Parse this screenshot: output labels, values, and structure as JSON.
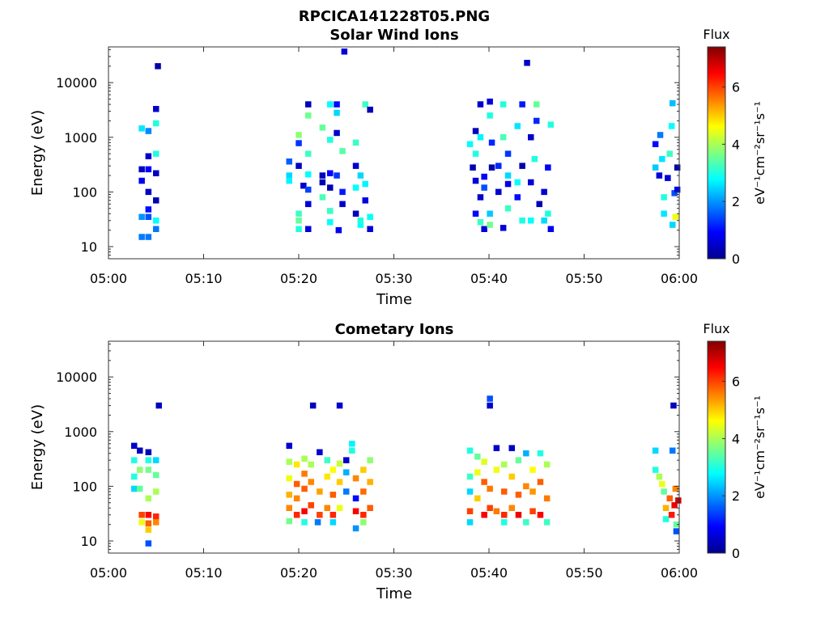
{
  "figure": {
    "title": "RPCICA141228T05.PNG"
  },
  "colorbar": {
    "label": "Flux",
    "unit_label": "eV⁻¹cm⁻²sr⁻¹s⁻¹",
    "range": [
      0,
      7.4
    ],
    "ticks": [
      "0",
      "2",
      "4",
      "6"
    ],
    "tick_values": [
      0,
      2,
      4,
      6
    ],
    "colormap": "jet"
  },
  "chart_data": [
    {
      "type": "heatmap",
      "title": "Solar Wind Ions",
      "xlabel": "Time",
      "ylabel": "Energy (eV)",
      "x_range_minutes": [
        0,
        60
      ],
      "x_ticks": [
        "05:00",
        "05:10",
        "05:20",
        "05:30",
        "05:40",
        "05:50",
        "06:00"
      ],
      "y_scale": "log",
      "y_range": [
        6,
        45000
      ],
      "y_ticks": [
        "10",
        "100",
        "1000",
        "10000"
      ],
      "cells": [
        [
          3.5,
          15,
          1.8
        ],
        [
          3.5,
          35,
          2.0
        ],
        [
          3.5,
          260,
          0.4
        ],
        [
          3.5,
          160,
          0.8
        ],
        [
          3.5,
          1450,
          2.6
        ],
        [
          4.2,
          1300,
          1.9
        ],
        [
          4.2,
          100,
          0.4
        ],
        [
          4.2,
          48,
          1.0
        ],
        [
          4.2,
          35,
          1.5
        ],
        [
          4.2,
          450,
          0.5
        ],
        [
          4.2,
          260,
          0.9
        ],
        [
          4.2,
          15,
          1.8
        ],
        [
          5.0,
          21,
          1.8
        ],
        [
          5.0,
          30,
          2.8
        ],
        [
          5.0,
          70,
          0.3
        ],
        [
          5.0,
          220,
          0.4
        ],
        [
          5.0,
          500,
          3.0
        ],
        [
          5.0,
          1800,
          3.0
        ],
        [
          5.0,
          3300,
          0.5
        ],
        [
          5.2,
          20000,
          0.2
        ],
        [
          19.0,
          200,
          2.5
        ],
        [
          19.0,
          360,
          1.6
        ],
        [
          19.0,
          160,
          2.7
        ],
        [
          20.0,
          21,
          3.0
        ],
        [
          20.0,
          30,
          3.5
        ],
        [
          20.0,
          40,
          3.2
        ],
        [
          20.0,
          300,
          0.4
        ],
        [
          20.0,
          780,
          1.3
        ],
        [
          20.0,
          1100,
          3.8
        ],
        [
          20.5,
          130,
          0.5
        ],
        [
          21.0,
          60,
          0.6
        ],
        [
          21.0,
          110,
          1.4
        ],
        [
          21.0,
          210,
          2.8
        ],
        [
          21.0,
          500,
          3.2
        ],
        [
          21.0,
          21,
          0.6
        ],
        [
          21.0,
          2500,
          3.6
        ],
        [
          21.0,
          4000,
          0.4
        ],
        [
          22.5,
          150,
          0.3
        ],
        [
          22.5,
          80,
          3.3
        ],
        [
          22.5,
          200,
          0.4
        ],
        [
          22.5,
          1500,
          3.5
        ],
        [
          23.3,
          28,
          2.8
        ],
        [
          23.3,
          45,
          3.2
        ],
        [
          23.3,
          120,
          0.3
        ],
        [
          23.3,
          220,
          0.9
        ],
        [
          23.3,
          900,
          3.0
        ],
        [
          23.3,
          4000,
          2.8
        ],
        [
          24.0,
          200,
          1.3
        ],
        [
          24.0,
          1200,
          0.5
        ],
        [
          24.0,
          4000,
          1.0
        ],
        [
          24.0,
          2800,
          2.5
        ],
        [
          24.2,
          20,
          0.8
        ],
        [
          24.8,
          37000,
          0.6
        ],
        [
          24.6,
          100,
          1.1
        ],
        [
          24.6,
          60,
          0.5
        ],
        [
          24.6,
          560,
          3.4
        ],
        [
          26.0,
          40,
          0.4
        ],
        [
          26.0,
          300,
          0.5
        ],
        [
          26.0,
          800,
          3.2
        ],
        [
          26.0,
          120,
          2.8
        ],
        [
          26.5,
          25,
          2.8
        ],
        [
          26.5,
          30,
          3.0
        ],
        [
          26.5,
          200,
          2.5
        ],
        [
          27.0,
          70,
          0.7
        ],
        [
          27.0,
          140,
          2.7
        ],
        [
          27.0,
          4000,
          3.2
        ],
        [
          27.5,
          21,
          0.6
        ],
        [
          27.5,
          35,
          2.8
        ],
        [
          27.5,
          3200,
          0.3
        ],
        [
          38.0,
          750,
          2.8
        ],
        [
          38.3,
          280,
          0.3
        ],
        [
          38.6,
          40,
          1.0
        ],
        [
          38.6,
          160,
          0.6
        ],
        [
          38.6,
          500,
          3.0
        ],
        [
          38.6,
          1300,
          0.4
        ],
        [
          39.1,
          28,
          3.2
        ],
        [
          39.1,
          80,
          0.5
        ],
        [
          39.1,
          1000,
          2.7
        ],
        [
          39.1,
          4000,
          0.5
        ],
        [
          39.5,
          21,
          0.6
        ],
        [
          39.5,
          190,
          0.9
        ],
        [
          39.5,
          120,
          1.5
        ],
        [
          40.1,
          4500,
          0.6
        ],
        [
          40.1,
          2500,
          3.0
        ],
        [
          40.1,
          40,
          2.4
        ],
        [
          40.1,
          25,
          3.6
        ],
        [
          40.3,
          280,
          0.2
        ],
        [
          40.3,
          800,
          1.2
        ],
        [
          41.0,
          100,
          0.5
        ],
        [
          41.0,
          300,
          1.2
        ],
        [
          41.5,
          4000,
          3.0
        ],
        [
          41.5,
          1000,
          3.3
        ],
        [
          41.5,
          22,
          0.6
        ],
        [
          42.0,
          50,
          3.2
        ],
        [
          42.0,
          140,
          0.7
        ],
        [
          42.0,
          500,
          1.3
        ],
        [
          42.0,
          200,
          2.5
        ],
        [
          43.0,
          1600,
          2.6
        ],
        [
          43.0,
          150,
          2.8
        ],
        [
          43.0,
          80,
          1.0
        ],
        [
          43.5,
          30,
          3.0
        ],
        [
          43.5,
          300,
          0.3
        ],
        [
          43.5,
          4000,
          1.1
        ],
        [
          44.0,
          23000,
          0.5
        ],
        [
          44.4,
          1000,
          0.5
        ],
        [
          44.4,
          30,
          2.8
        ],
        [
          44.4,
          150,
          0.6
        ],
        [
          44.8,
          400,
          3.0
        ],
        [
          45.0,
          2000,
          1.2
        ],
        [
          45.0,
          4000,
          3.5
        ],
        [
          45.3,
          60,
          0.3
        ],
        [
          45.8,
          30,
          2.5
        ],
        [
          45.8,
          100,
          0.6
        ],
        [
          46.2,
          40,
          3.0
        ],
        [
          46.2,
          280,
          0.9
        ],
        [
          46.5,
          21,
          0.8
        ],
        [
          46.5,
          1700,
          3.0
        ],
        [
          57.5,
          280,
          2.4
        ],
        [
          57.5,
          750,
          1.0
        ],
        [
          57.9,
          200,
          0.6
        ],
        [
          58.0,
          1100,
          1.8
        ],
        [
          58.2,
          400,
          2.6
        ],
        [
          58.4,
          80,
          3.0
        ],
        [
          58.4,
          40,
          2.6
        ],
        [
          58.8,
          180,
          0.6
        ],
        [
          59.0,
          500,
          3.2
        ],
        [
          59.2,
          1600,
          2.8
        ],
        [
          59.3,
          4200,
          2.3
        ],
        [
          59.3,
          25,
          2.5
        ],
        [
          59.5,
          95,
          1.5
        ],
        [
          59.6,
          35,
          4.5
        ],
        [
          59.8,
          110,
          0.8
        ],
        [
          59.8,
          280,
          0.2
        ]
      ]
    },
    {
      "type": "heatmap",
      "title": "Cometary Ions",
      "xlabel": "Time",
      "ylabel": "Energy (eV)",
      "x_range_minutes": [
        0,
        60
      ],
      "x_ticks": [
        "05:00",
        "05:10",
        "05:20",
        "05:30",
        "05:40",
        "05:50",
        "06:00"
      ],
      "y_scale": "log",
      "y_range": [
        6,
        45000
      ],
      "y_ticks": [
        "10",
        "100",
        "1000",
        "10000"
      ],
      "cells": [
        [
          2.7,
          90,
          2.5
        ],
        [
          2.7,
          150,
          3.0
        ],
        [
          2.7,
          300,
          3.0
        ],
        [
          2.7,
          550,
          0.5
        ],
        [
          3.3,
          90,
          3.5
        ],
        [
          3.3,
          200,
          3.8
        ],
        [
          3.3,
          450,
          0.4
        ],
        [
          3.5,
          30,
          6.0
        ],
        [
          3.5,
          22,
          4.5
        ],
        [
          4.2,
          30,
          6.5
        ],
        [
          4.2,
          21,
          5.8
        ],
        [
          4.2,
          16,
          5.0
        ],
        [
          4.2,
          9,
          1.5
        ],
        [
          4.2,
          60,
          4.0
        ],
        [
          4.2,
          200,
          3.6
        ],
        [
          4.2,
          300,
          3.0
        ],
        [
          4.2,
          420,
          0.4
        ],
        [
          5.0,
          28,
          6.2
        ],
        [
          5.0,
          22,
          5.5
        ],
        [
          5.0,
          80,
          4.0
        ],
        [
          5.0,
          160,
          3.5
        ],
        [
          5.0,
          300,
          2.5
        ],
        [
          5.3,
          3000,
          0.4
        ],
        [
          19.0,
          23,
          3.6
        ],
        [
          19.0,
          40,
          5.5
        ],
        [
          19.0,
          70,
          5.2
        ],
        [
          19.0,
          140,
          4.5
        ],
        [
          19.0,
          280,
          4.0
        ],
        [
          19.0,
          550,
          0.5
        ],
        [
          19.8,
          30,
          6.2
        ],
        [
          19.8,
          60,
          5.5
        ],
        [
          19.8,
          110,
          5.8
        ],
        [
          19.8,
          250,
          4.8
        ],
        [
          20.6,
          22,
          3.0
        ],
        [
          20.6,
          35,
          6.5
        ],
        [
          20.6,
          90,
          5.8
        ],
        [
          20.6,
          170,
          5.6
        ],
        [
          20.6,
          320,
          4.0
        ],
        [
          21.3,
          45,
          6.0
        ],
        [
          21.3,
          120,
          5.5
        ],
        [
          21.3,
          250,
          4.0
        ],
        [
          21.5,
          3000,
          0.4
        ],
        [
          22.0,
          22,
          1.8
        ],
        [
          22.2,
          30,
          6.0
        ],
        [
          22.2,
          80,
          5.3
        ],
        [
          22.2,
          420,
          0.5
        ],
        [
          23.0,
          40,
          5.5
        ],
        [
          23.0,
          150,
          4.8
        ],
        [
          23.0,
          300,
          3.2
        ],
        [
          23.6,
          22,
          2.5
        ],
        [
          23.6,
          30,
          6.2
        ],
        [
          23.6,
          70,
          5.8
        ],
        [
          23.6,
          200,
          4.6
        ],
        [
          24.3,
          3000,
          0.5
        ],
        [
          24.3,
          40,
          4.5
        ],
        [
          24.3,
          120,
          5.0
        ],
        [
          24.3,
          260,
          4.2
        ],
        [
          25.0,
          80,
          1.8
        ],
        [
          25.0,
          180,
          2.2
        ],
        [
          25.0,
          300,
          0.5
        ],
        [
          25.6,
          450,
          3.0
        ],
        [
          25.6,
          600,
          2.7
        ],
        [
          26.0,
          35,
          6.5
        ],
        [
          26.0,
          17,
          2.0
        ],
        [
          26.0,
          60,
          1.0
        ],
        [
          26.0,
          140,
          5.5
        ],
        [
          26.8,
          22,
          3.8
        ],
        [
          26.8,
          30,
          6.2
        ],
        [
          26.8,
          80,
          5.7
        ],
        [
          26.8,
          200,
          5.0
        ],
        [
          27.5,
          40,
          5.8
        ],
        [
          27.5,
          120,
          5.2
        ],
        [
          27.5,
          300,
          3.8
        ],
        [
          38.0,
          22,
          2.5
        ],
        [
          38.0,
          35,
          6.0
        ],
        [
          38.0,
          80,
          2.5
        ],
        [
          38.0,
          150,
          3.2
        ],
        [
          38.0,
          450,
          3.0
        ],
        [
          38.8,
          60,
          5.0
        ],
        [
          38.8,
          180,
          4.5
        ],
        [
          38.8,
          350,
          3.5
        ],
        [
          39.5,
          30,
          6.5
        ],
        [
          39.5,
          120,
          5.8
        ],
        [
          39.5,
          280,
          4.4
        ],
        [
          40.1,
          40,
          6.0
        ],
        [
          40.1,
          90,
          5.6
        ],
        [
          40.1,
          4000,
          1.5
        ],
        [
          40.1,
          3000,
          0.5
        ],
        [
          40.8,
          35,
          5.6
        ],
        [
          40.8,
          200,
          4.5
        ],
        [
          40.8,
          500,
          0.5
        ],
        [
          41.6,
          22,
          3.0
        ],
        [
          41.6,
          30,
          6.2
        ],
        [
          41.6,
          80,
          5.8
        ],
        [
          41.6,
          250,
          4.0
        ],
        [
          42.4,
          40,
          5.5
        ],
        [
          42.4,
          150,
          5.0
        ],
        [
          42.4,
          500,
          0.4
        ],
        [
          43.1,
          30,
          6.6
        ],
        [
          43.1,
          70,
          5.8
        ],
        [
          43.1,
          300,
          3.5
        ],
        [
          43.9,
          22,
          3.2
        ],
        [
          43.9,
          100,
          5.5
        ],
        [
          43.9,
          400,
          2.2
        ],
        [
          44.6,
          35,
          6.0
        ],
        [
          44.6,
          80,
          5.4
        ],
        [
          44.6,
          200,
          4.6
        ],
        [
          45.4,
          30,
          6.5
        ],
        [
          45.4,
          120,
          5.8
        ],
        [
          45.4,
          400,
          3.0
        ],
        [
          46.1,
          22,
          3.2
        ],
        [
          46.1,
          60,
          5.6
        ],
        [
          46.1,
          250,
          4.0
        ],
        [
          57.5,
          200,
          3.0
        ],
        [
          57.5,
          450,
          2.5
        ],
        [
          57.9,
          150,
          4.0
        ],
        [
          58.2,
          110,
          4.5
        ],
        [
          58.4,
          80,
          3.5
        ],
        [
          58.6,
          40,
          5.2
        ],
        [
          58.6,
          25,
          3.0
        ],
        [
          59.0,
          60,
          5.8
        ],
        [
          59.2,
          30,
          6.3
        ],
        [
          59.3,
          450,
          1.8
        ],
        [
          59.4,
          3000,
          0.4
        ],
        [
          59.5,
          45,
          6.6
        ],
        [
          59.6,
          90,
          5.5
        ],
        [
          59.7,
          20,
          3.5
        ],
        [
          59.7,
          15,
          1.5
        ],
        [
          59.9,
          55,
          6.8
        ]
      ]
    }
  ]
}
